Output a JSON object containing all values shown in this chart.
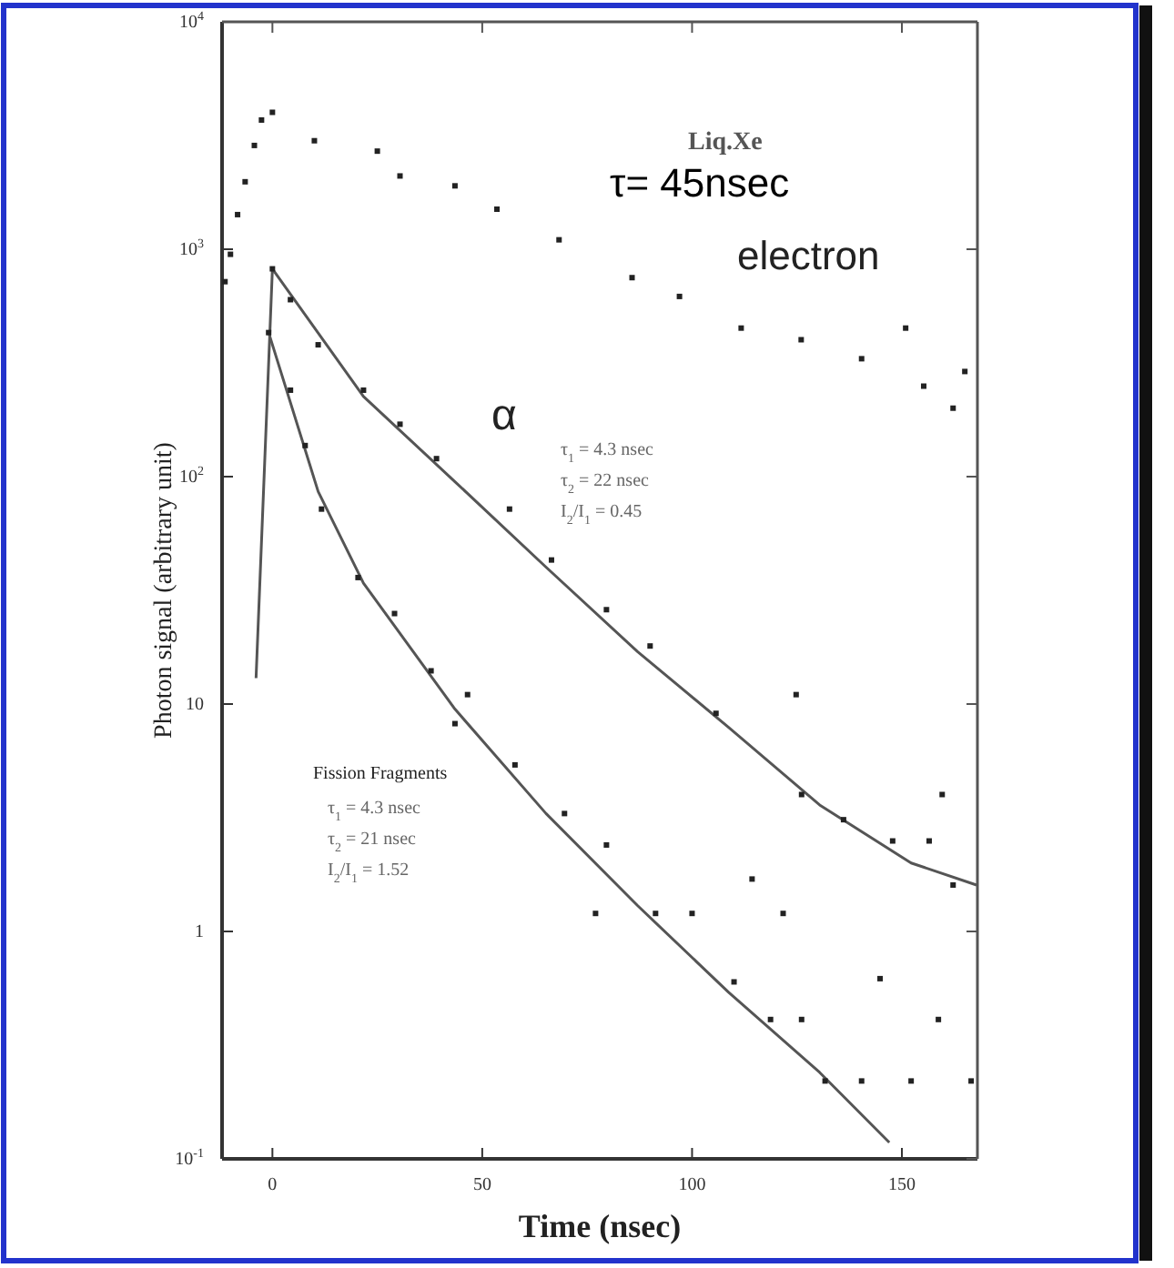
{
  "chart_data": {
    "type": "scatter",
    "xlabel": "Time (nsec)",
    "ylabel": "Photon signal (arbitrary unit)",
    "log": "y",
    "xlim": [
      -12,
      168
    ],
    "xticks": [
      0,
      50,
      100,
      150
    ],
    "ylim": [
      0.1,
      10000
    ],
    "yticks": [
      {
        "value": 10000,
        "label": "10$^{4}$"
      },
      {
        "value": 1000,
        "label": "10$^{3}$"
      },
      {
        "value": 100,
        "label": "10$^{2}$"
      },
      10,
      1,
      {
        "value": 0.1,
        "label": "10$^{-1}$"
      }
    ],
    "grid": false,
    "marker": "square",
    "series": [
      {
        "name": "electron",
        "color": "#222222",
        "x": [
          -11.3,
          -10,
          -8.3,
          -6.5,
          -4.3,
          -2.6,
          0,
          10,
          25,
          30.4,
          43.5,
          53.5,
          68.3,
          85.7,
          97,
          111.7,
          126,
          140.4,
          150.9,
          155.2,
          162.2,
          165
        ],
        "values": [
          720,
          950,
          1420,
          1980,
          2860,
          3700,
          4000,
          3000,
          2700,
          2100,
          1900,
          1500,
          1100,
          750,
          620,
          450,
          400,
          330,
          450,
          250,
          200,
          290
        ]
      },
      {
        "name": "α",
        "color": "#222222",
        "x": [
          0,
          4.3,
          10.9,
          21.7,
          30.4,
          39.1,
          56.5,
          66.5,
          79.6,
          90,
          105.7,
          124.8,
          126.1,
          136.1,
          147.8,
          156.5,
          162.2,
          159.6,
          144.8,
          158.7,
          114.3,
          121.7
        ],
        "values": [
          820,
          600,
          380,
          240,
          170,
          120,
          72,
          43,
          26,
          18,
          9.1,
          11,
          4.0,
          3.1,
          2.5,
          2.5,
          1.6,
          4.0,
          0.62,
          0.41,
          1.7,
          1.2
        ]
      },
      {
        "type": "line",
        "marker": "none",
        "color": "#555555",
        "x": [
          -3.9,
          0,
          21.7,
          43.5,
          65.2,
          87,
          108.7,
          130.4,
          152.2,
          167.8
        ],
        "values": [
          13,
          820,
          225,
          95,
          40,
          17,
          7.9,
          3.6,
          2.0,
          1.6
        ]
      },
      {
        "name": "Fission Fragments",
        "color": "#222222",
        "x": [
          -0.9,
          4.3,
          7.8,
          11.7,
          20.4,
          29.1,
          37.8,
          46.5,
          57.8,
          69.6,
          79.6,
          91.3,
          100,
          110,
          118.7,
          126.1,
          131.7,
          140.4,
          152.2,
          166.5,
          77,
          43.5
        ],
        "values": [
          430,
          240,
          137,
          72,
          36,
          25,
          14,
          11,
          5.4,
          3.3,
          2.4,
          1.2,
          1.2,
          0.6,
          0.41,
          0.41,
          0.22,
          0.22,
          0.22,
          0.22,
          1.2,
          8.2
        ]
      },
      {
        "type": "line",
        "marker": "none",
        "color": "#555555",
        "x": [
          -0.9,
          10.9,
          21.7,
          43.5,
          65.2,
          87,
          108.7,
          130.4,
          147
        ],
        "values": [
          430,
          86,
          34,
          9.5,
          3.3,
          1.3,
          0.54,
          0.24,
          0.118
        ]
      }
    ],
    "annotations": [
      "Liq.Xe",
      "τ= 45nsec",
      "τ$_{1}$ = 4.3 nsec",
      "τ$_{2}$ = 22 nsec",
      "I$_{2}$/I$_{1}$ = 0.45",
      "τ$_{1}$ = 4.3 nsec",
      "τ$_{2}$ = 21 nsec",
      "I$_{2}$/I$_{1}$ = 1.52"
    ]
  }
}
